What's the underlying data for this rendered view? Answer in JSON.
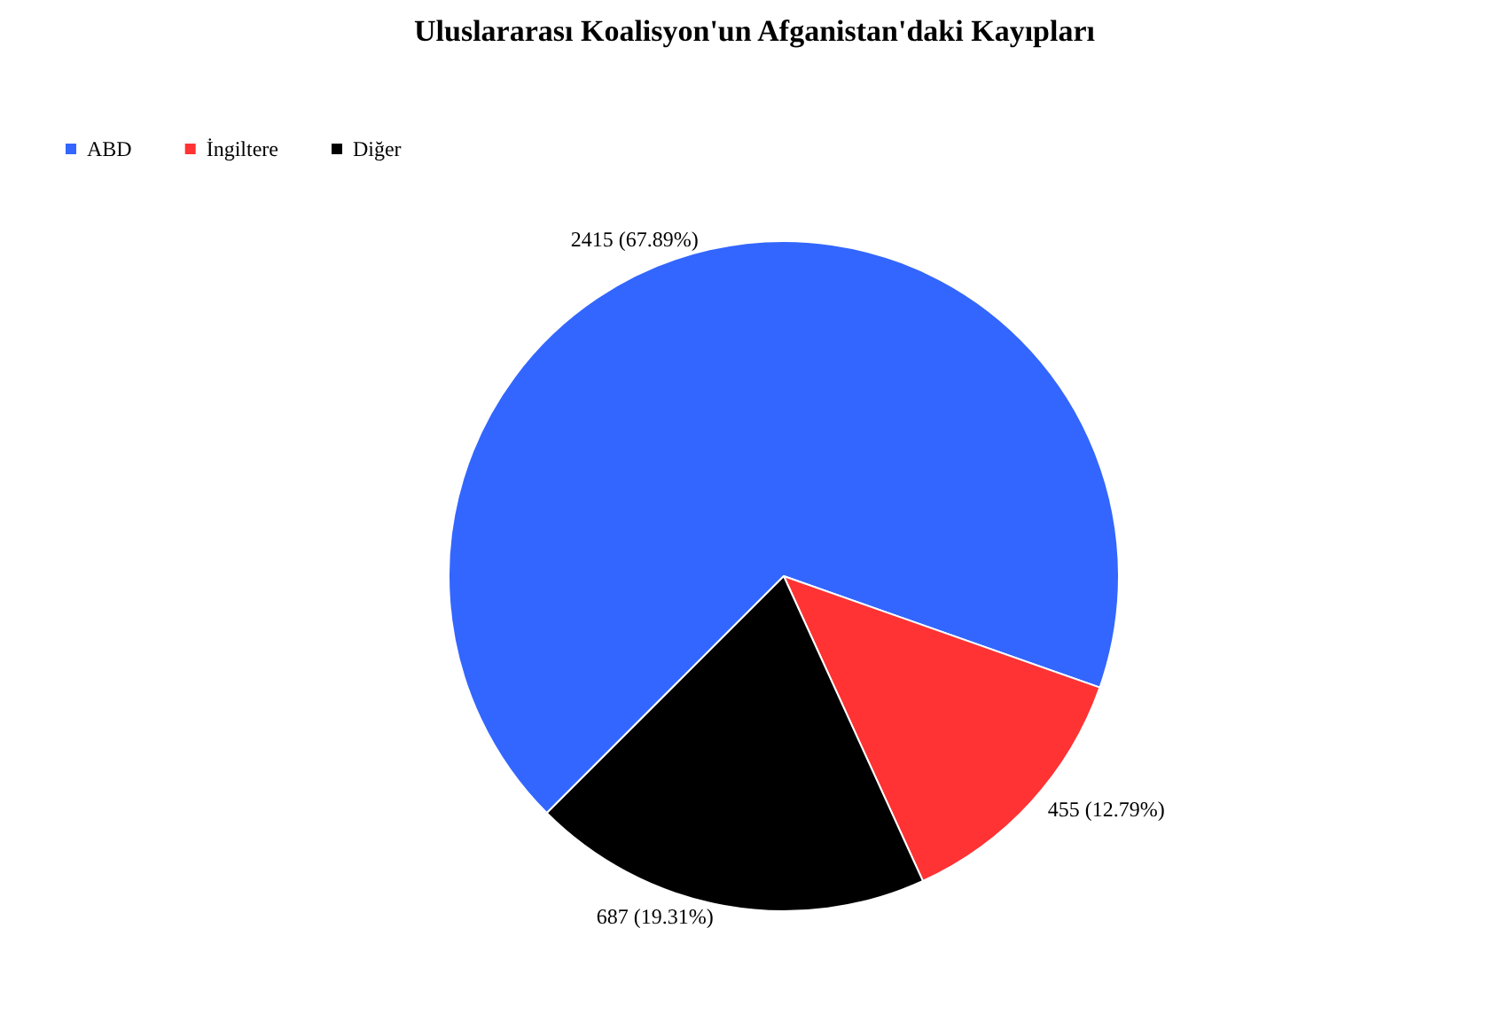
{
  "chart_data": {
    "type": "pie",
    "title": "Uluslararası Koalisyon'un Afganistan'daki Kayıpları",
    "categories": [
      "ABD",
      "İngiltere",
      "Diğer"
    ],
    "values": [
      2415,
      455,
      687
    ],
    "value_labels": [
      "2415 (67.89%)",
      "455 (12.79%)",
      "687 (19.31%)"
    ],
    "colors": [
      "#3366ff",
      "#ff3333",
      "#000000"
    ],
    "legend": "top left"
  }
}
